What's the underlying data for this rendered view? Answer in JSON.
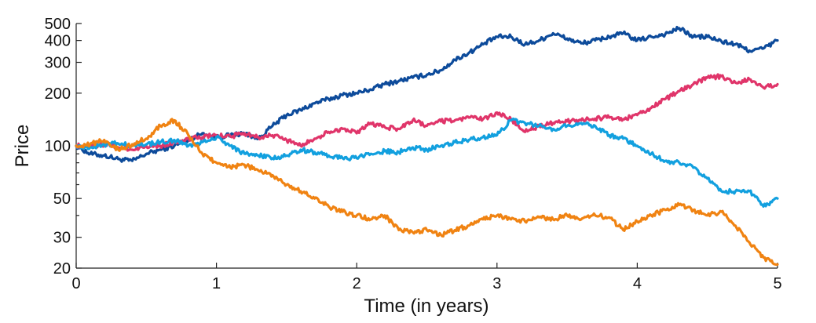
{
  "chart_data": {
    "type": "line",
    "title": "",
    "xlabel": "Time (in years)",
    "ylabel": "Price",
    "xlim": [
      0,
      5
    ],
    "ylim": [
      20,
      500
    ],
    "yscale": "log",
    "grid": false,
    "legend": "none",
    "x_ticks": [
      0,
      1,
      2,
      3,
      4,
      5
    ],
    "y_ticks": [
      20,
      30,
      50,
      100,
      200,
      300,
      400,
      500
    ],
    "y_minor_ticks": [
      40,
      60,
      70,
      80,
      90
    ],
    "series": [
      {
        "color": "#0d4b9b",
        "x": [
          0,
          0.1,
          0.2,
          0.3,
          0.4,
          0.5,
          0.6,
          0.7,
          0.8,
          0.9,
          1.0,
          1.1,
          1.2,
          1.3,
          1.4,
          1.5,
          1.6,
          1.7,
          1.8,
          1.9,
          2.0,
          2.1,
          2.2,
          2.3,
          2.4,
          2.5,
          2.6,
          2.7,
          2.8,
          2.9,
          3.0,
          3.1,
          3.2,
          3.3,
          3.4,
          3.5,
          3.6,
          3.7,
          3.8,
          3.9,
          4.0,
          4.1,
          4.2,
          4.3,
          4.4,
          4.5,
          4.6,
          4.7,
          4.8,
          4.9,
          5.0
        ],
        "y": [
          100,
          90,
          88,
          84,
          82,
          90,
          95,
          100,
          108,
          118,
          112,
          115,
          118,
          110,
          130,
          150,
          160,
          175,
          185,
          195,
          200,
          210,
          225,
          235,
          245,
          255,
          270,
          310,
          340,
          380,
          420,
          420,
          380,
          400,
          440,
          410,
          385,
          400,
          420,
          440,
          400,
          420,
          435,
          470,
          420,
          420,
          395,
          380,
          350,
          360,
          400
        ]
      },
      {
        "color": "#e0356a",
        "x": [
          0,
          0.1,
          0.2,
          0.3,
          0.4,
          0.5,
          0.6,
          0.7,
          0.8,
          0.9,
          1.0,
          1.1,
          1.2,
          1.3,
          1.4,
          1.5,
          1.6,
          1.7,
          1.8,
          1.9,
          2.0,
          2.1,
          2.2,
          2.3,
          2.4,
          2.5,
          2.6,
          2.7,
          2.8,
          2.9,
          3.0,
          3.1,
          3.2,
          3.3,
          3.4,
          3.5,
          3.6,
          3.7,
          3.8,
          3.9,
          4.0,
          4.1,
          4.2,
          4.3,
          4.4,
          4.5,
          4.6,
          4.7,
          4.8,
          4.9,
          5.0
        ],
        "y": [
          100,
          100,
          102,
          98,
          95,
          100,
          100,
          105,
          110,
          112,
          115,
          113,
          118,
          112,
          115,
          108,
          100,
          110,
          120,
          125,
          118,
          135,
          128,
          125,
          140,
          130,
          138,
          140,
          145,
          142,
          155,
          142,
          120,
          130,
          135,
          138,
          140,
          143,
          145,
          142,
          150,
          165,
          185,
          205,
          225,
          245,
          250,
          230,
          240,
          215,
          225
        ]
      },
      {
        "color": "#12a0df",
        "x": [
          0,
          0.1,
          0.2,
          0.3,
          0.4,
          0.5,
          0.6,
          0.7,
          0.8,
          0.9,
          1.0,
          1.1,
          1.2,
          1.3,
          1.4,
          1.5,
          1.6,
          1.7,
          1.8,
          1.9,
          2.0,
          2.1,
          2.2,
          2.3,
          2.4,
          2.5,
          2.6,
          2.7,
          2.8,
          2.9,
          3.0,
          3.1,
          3.2,
          3.3,
          3.4,
          3.5,
          3.6,
          3.7,
          3.8,
          3.9,
          4.0,
          4.1,
          4.2,
          4.3,
          4.4,
          4.5,
          4.6,
          4.7,
          4.8,
          4.9,
          5.0
        ],
        "y": [
          100,
          98,
          102,
          103,
          100,
          102,
          105,
          108,
          100,
          105,
          112,
          100,
          90,
          88,
          85,
          88,
          95,
          92,
          88,
          85,
          85,
          90,
          93,
          92,
          98,
          95,
          100,
          105,
          108,
          112,
          115,
          140,
          135,
          130,
          125,
          130,
          135,
          130,
          115,
          110,
          100,
          90,
          82,
          80,
          75,
          65,
          55,
          55,
          55,
          45,
          50
        ]
      },
      {
        "color": "#f08312",
        "x": [
          0,
          0.1,
          0.2,
          0.3,
          0.4,
          0.5,
          0.6,
          0.7,
          0.8,
          0.9,
          1.0,
          1.1,
          1.2,
          1.3,
          1.4,
          1.5,
          1.6,
          1.7,
          1.8,
          1.9,
          2.0,
          2.1,
          2.2,
          2.3,
          2.4,
          2.5,
          2.6,
          2.7,
          2.8,
          2.9,
          3.0,
          3.1,
          3.2,
          3.3,
          3.4,
          3.5,
          3.6,
          3.7,
          3.8,
          3.9,
          4.0,
          4.1,
          4.2,
          4.3,
          4.4,
          4.5,
          4.6,
          4.7,
          4.8,
          4.9,
          5.0
        ],
        "y": [
          100,
          102,
          108,
          95,
          102,
          110,
          130,
          140,
          115,
          90,
          80,
          75,
          78,
          72,
          68,
          60,
          55,
          50,
          45,
          42,
          40,
          38,
          40,
          33,
          32,
          33,
          31,
          33,
          35,
          38,
          40,
          38,
          37,
          39,
          38,
          40,
          38,
          40,
          39,
          33,
          37,
          40,
          43,
          46,
          43,
          40,
          42,
          35,
          28,
          23,
          21
        ]
      }
    ]
  }
}
